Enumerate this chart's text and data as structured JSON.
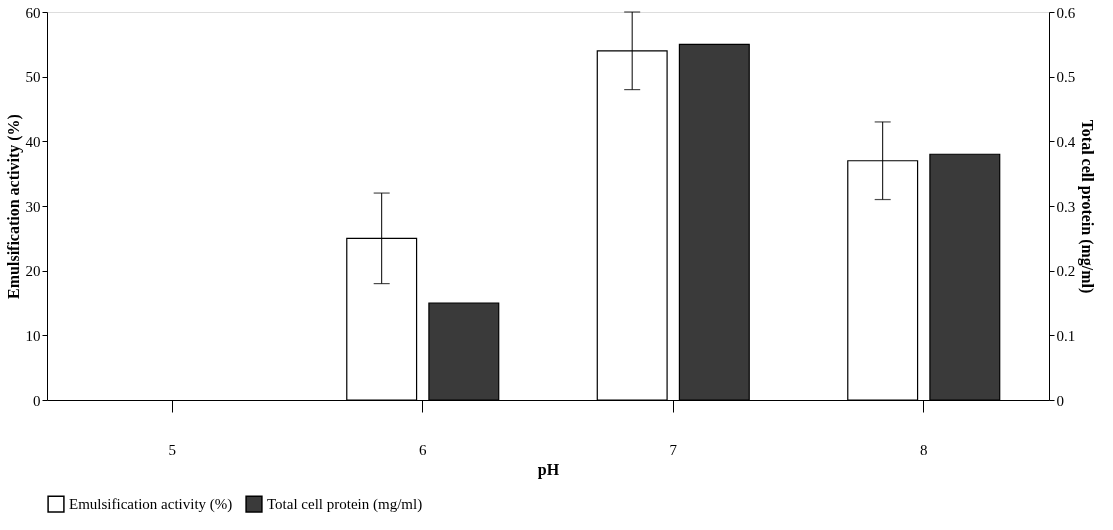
{
  "chart_data": {
    "type": "bar",
    "xlabel": "pH",
    "ylabel": "Emulsification activity (%)",
    "y2label": "Total cell protein (mg/ml)",
    "categories": [
      "5",
      "6",
      "7",
      "8"
    ],
    "series": [
      {
        "name": "Emulsification activity (%)",
        "color": "#ffffff",
        "values": [
          null,
          25,
          54,
          37
        ],
        "errors": [
          null,
          7,
          6,
          6
        ]
      },
      {
        "name": "Total cell protein (mg/ml)",
        "color": "#3a3a3a",
        "values": [
          null,
          0.15,
          0.55,
          0.38
        ],
        "axis": "y2"
      }
    ],
    "ylim": [
      0,
      60
    ],
    "yticks": [
      0,
      10,
      20,
      30,
      40,
      50,
      60
    ],
    "y2lim": [
      0,
      0.6
    ],
    "y2ticks": [
      0,
      0.1,
      0.2,
      0.3,
      0.4,
      0.5,
      0.6
    ],
    "grid": false,
    "legend": "bottom"
  }
}
